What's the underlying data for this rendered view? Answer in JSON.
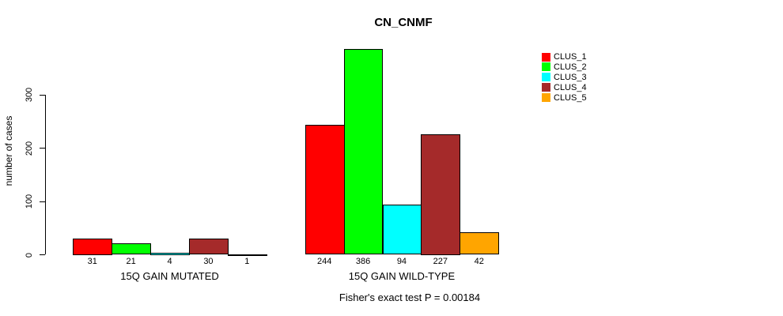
{
  "title": "CN_CNMF",
  "y_axis": {
    "label": "number of cases",
    "ticks": [
      0,
      100,
      200,
      300
    ]
  },
  "footer": "Fisher's exact test P = 0.00184",
  "legend": {
    "items": [
      {
        "label": "CLUS_1",
        "color": "#FF0000"
      },
      {
        "label": "CLUS_2",
        "color": "#00FF00"
      },
      {
        "label": "CLUS_3",
        "color": "#00FFFF"
      },
      {
        "label": "CLUS_4",
        "color": "#A52A2A"
      },
      {
        "label": "CLUS_5",
        "color": "#FFA500"
      }
    ]
  },
  "chart_data": {
    "type": "bar",
    "title": "CN_CNMF",
    "ylabel": "number of cases",
    "ylim": [
      0,
      386
    ],
    "yticks": [
      0,
      100,
      200,
      300
    ],
    "grid": false,
    "legend_position": "right",
    "series_names": [
      "CLUS_1",
      "CLUS_2",
      "CLUS_3",
      "CLUS_4",
      "CLUS_5"
    ],
    "series_colors": [
      "#FF0000",
      "#00FF00",
      "#00FFFF",
      "#A52A2A",
      "#FFA500"
    ],
    "groups": [
      {
        "label": "15Q GAIN MUTATED",
        "values": [
          31,
          21,
          4,
          30,
          1
        ]
      },
      {
        "label": "15Q GAIN WILD-TYPE",
        "values": [
          244,
          386,
          94,
          227,
          42
        ]
      }
    ],
    "annotation": "Fisher's exact test P = 0.00184"
  }
}
